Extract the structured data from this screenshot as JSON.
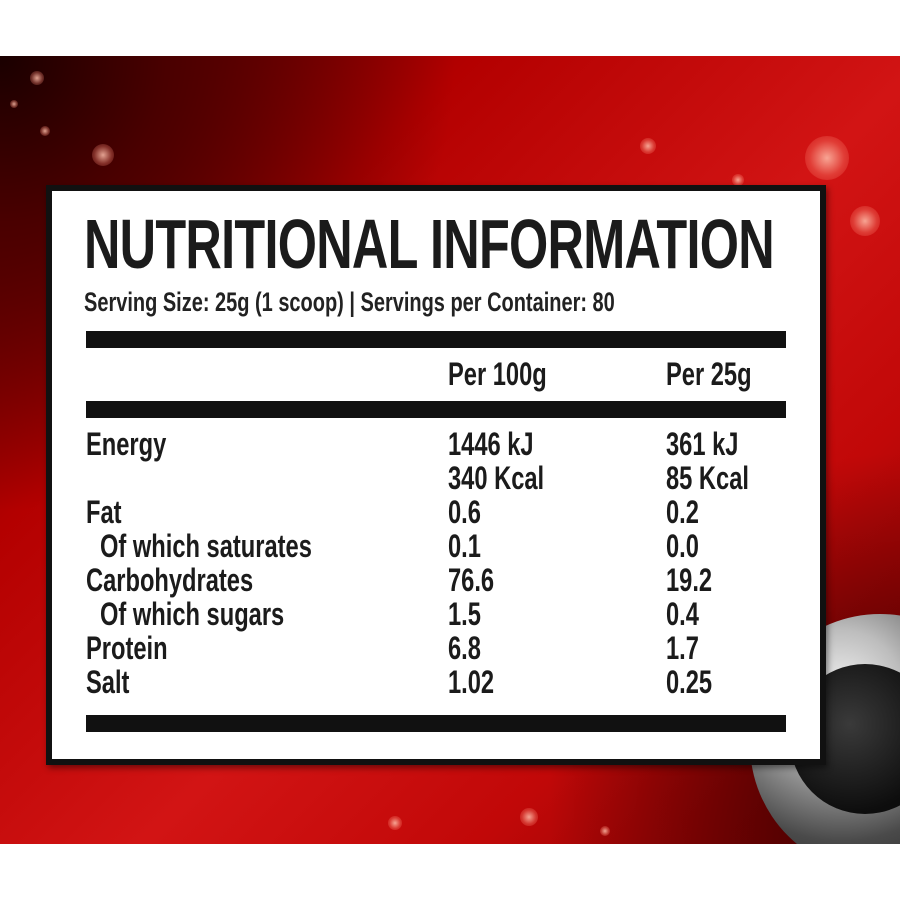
{
  "label": {
    "title": "NUTRITIONAL INFORMATION",
    "serving_line": "Serving Size: 25g (1 scoop)  | Servings per Container: 80",
    "columns": {
      "per_100g": "Per 100g",
      "per_serving": "Per 25g"
    },
    "rows": [
      {
        "name": "Energy",
        "per_100g": [
          "1446 kJ",
          "340 Kcal"
        ],
        "per_serving": [
          "361 kJ",
          "85 Kcal"
        ],
        "sub": false
      },
      {
        "name": "Fat",
        "per_100g": [
          "0.6"
        ],
        "per_serving": [
          "0.2"
        ],
        "sub": false
      },
      {
        "name": "Of which saturates",
        "per_100g": [
          "0.1"
        ],
        "per_serving": [
          "0.0"
        ],
        "sub": true
      },
      {
        "name": "Carbohydrates",
        "per_100g": [
          "76.6"
        ],
        "per_serving": [
          "19.2"
        ],
        "sub": false
      },
      {
        "name": "Of which sugars",
        "per_100g": [
          "1.5"
        ],
        "per_serving": [
          "0.4"
        ],
        "sub": true
      },
      {
        "name": "Protein",
        "per_100g": [
          "6.8"
        ],
        "per_serving": [
          "1.7"
        ],
        "sub": false
      },
      {
        "name": "Salt",
        "per_100g": [
          "1.02"
        ],
        "per_serving": [
          "0.25"
        ],
        "sub": false
      }
    ]
  },
  "colors": {
    "background_red": "#c10808",
    "label_text": "#1b1b1b",
    "rule": "#111111"
  }
}
